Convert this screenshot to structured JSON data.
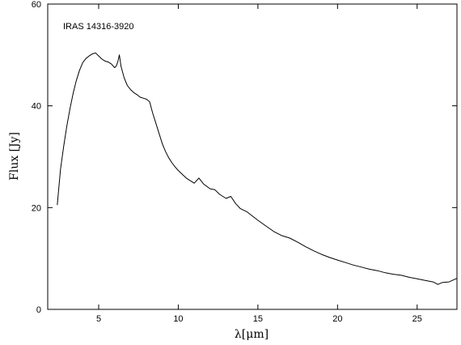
{
  "chart_data": {
    "type": "line",
    "annotation": "IRAS 14316-3920",
    "xlabel": "λ[μm]",
    "ylabel": "Flux [Jy]",
    "xlim": [
      1.8,
      27.5
    ],
    "ylim": [
      0,
      60
    ],
    "x_ticks": [
      5,
      10,
      15,
      20,
      25
    ],
    "y_ticks": [
      0,
      20,
      40,
      60
    ],
    "x_tick_labels": [
      "5",
      "10",
      "15",
      "20",
      "25"
    ],
    "y_tick_labels": [
      "0",
      "20",
      "40",
      "60"
    ],
    "grid": false,
    "series": [
      {
        "x": [
          2.4,
          2.6,
          2.8,
          3.0,
          3.2,
          3.4,
          3.6,
          3.8,
          4.0,
          4.2,
          4.4,
          4.6,
          4.8,
          5.0,
          5.2,
          5.4,
          5.6,
          5.8,
          6.0,
          6.1,
          6.2,
          6.3,
          6.4,
          6.6,
          6.8,
          7.0,
          7.2,
          7.4,
          7.6,
          7.8,
          8.0,
          8.2,
          8.4,
          8.6,
          8.8,
          9.0,
          9.2,
          9.4,
          9.6,
          9.8,
          10.0,
          10.5,
          11.0,
          11.3,
          11.6,
          12.0,
          12.3,
          12.6,
          13.0,
          13.3,
          13.6,
          13.9,
          14.3,
          15.0,
          15.5,
          16.0,
          16.5,
          17.0,
          17.5,
          18.0,
          18.5,
          19.0,
          19.5,
          20.0,
          20.5,
          21.0,
          21.5,
          22.0,
          22.5,
          23.0,
          23.5,
          24.0,
          24.5,
          25.0,
          25.5,
          26.0,
          26.3,
          26.6,
          27.0,
          27.5
        ],
        "y": [
          20.5,
          27.5,
          32.0,
          36.0,
          39.5,
          42.5,
          45.0,
          47.0,
          48.5,
          49.3,
          49.8,
          50.2,
          50.4,
          49.8,
          49.2,
          48.8,
          48.6,
          48.2,
          47.5,
          47.8,
          48.6,
          50.0,
          47.8,
          45.5,
          44.0,
          43.2,
          42.6,
          42.2,
          41.7,
          41.5,
          41.3,
          40.8,
          38.5,
          36.5,
          34.5,
          32.5,
          31.0,
          29.8,
          28.8,
          28.0,
          27.3,
          25.8,
          24.8,
          25.8,
          24.6,
          23.7,
          23.5,
          22.6,
          21.8,
          22.2,
          20.8,
          19.8,
          19.2,
          17.5,
          16.4,
          15.3,
          14.5,
          14.0,
          13.2,
          12.3,
          11.5,
          10.8,
          10.2,
          9.7,
          9.2,
          8.7,
          8.3,
          7.9,
          7.6,
          7.2,
          6.9,
          6.7,
          6.3,
          6.0,
          5.7,
          5.4,
          4.9,
          5.3,
          5.4,
          6.1
        ]
      }
    ]
  }
}
